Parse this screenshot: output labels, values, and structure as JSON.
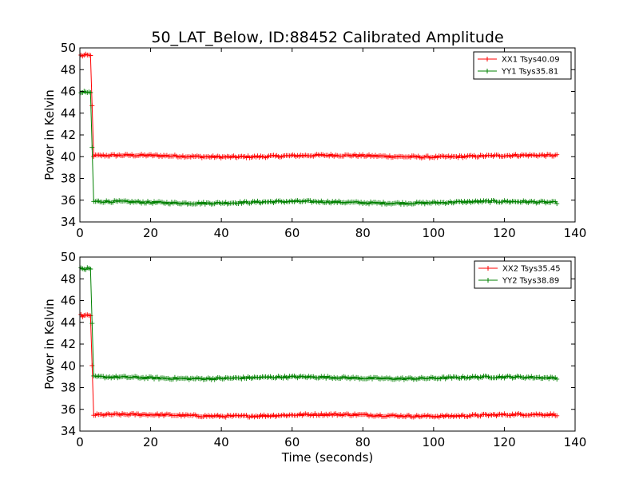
{
  "title": "50_LAT_Below, ID:88452 Calibrated Amplitude",
  "xlabel": "Time (seconds)",
  "colors": {
    "red": "#ff0000",
    "green": "#008000",
    "axis": "#000000"
  },
  "chart_data": [
    {
      "type": "line",
      "title": "50_LAT_Below, ID:88452 Calibrated Amplitude",
      "xlabel": "",
      "ylabel": "Power in Kelvin",
      "xlim": [
        0,
        140
      ],
      "ylim": [
        34,
        50
      ],
      "xticks": [
        0,
        20,
        40,
        60,
        80,
        100,
        120,
        140
      ],
      "yticks": [
        34,
        36,
        38,
        40,
        42,
        44,
        46,
        48,
        50
      ],
      "grid": false,
      "legend_position": "top-right",
      "series": [
        {
          "name": "XX1 Tsys40.09",
          "color": "#ff0000",
          "initial": 49.3,
          "step_time": 3.0,
          "steady": 40.05,
          "end_time": 135
        },
        {
          "name": "YY1 Tsys35.81",
          "color": "#008000",
          "initial": 45.9,
          "step_time": 3.0,
          "steady": 35.8,
          "end_time": 135
        }
      ]
    },
    {
      "type": "line",
      "title": "",
      "xlabel": "Time (seconds)",
      "ylabel": "Power in Kelvin",
      "xlim": [
        0,
        140
      ],
      "ylim": [
        34,
        50
      ],
      "xticks": [
        0,
        20,
        40,
        60,
        80,
        100,
        120,
        140
      ],
      "yticks": [
        34,
        36,
        38,
        40,
        42,
        44,
        46,
        48,
        50
      ],
      "grid": false,
      "legend_position": "top-right",
      "series": [
        {
          "name": "XX2 Tsys35.45",
          "color": "#ff0000",
          "initial": 44.6,
          "step_time": 3.0,
          "steady": 35.45,
          "end_time": 135
        },
        {
          "name": "YY2 Tsys38.89",
          "color": "#008000",
          "initial": 48.9,
          "step_time": 3.0,
          "steady": 38.9,
          "end_time": 135
        }
      ]
    }
  ]
}
